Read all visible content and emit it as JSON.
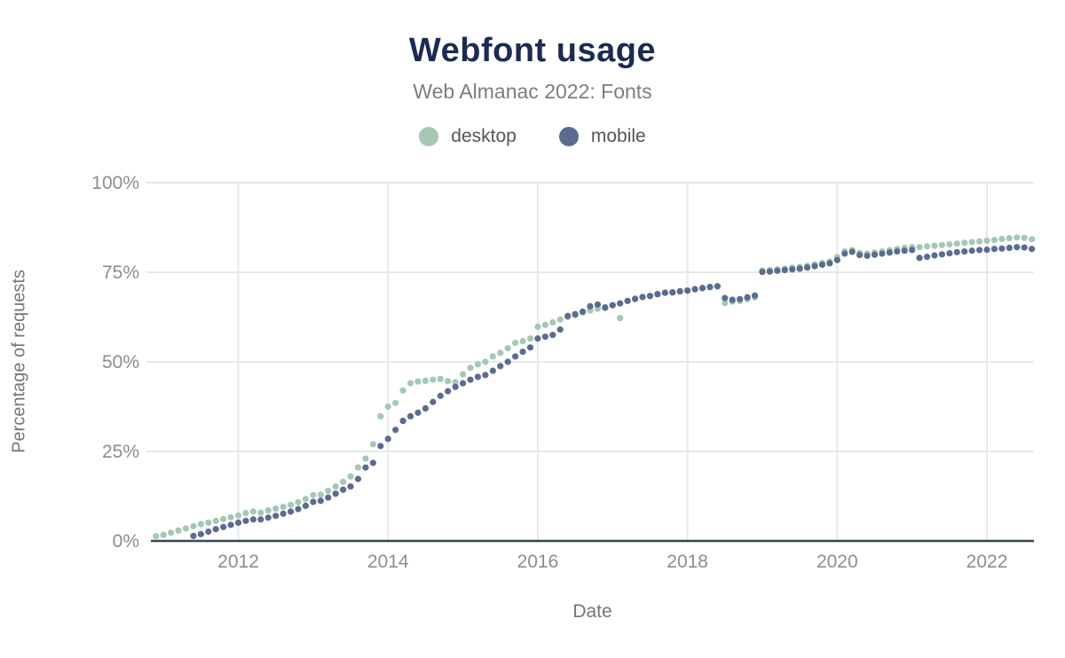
{
  "title": "Webfont usage",
  "subtitle": "Web Almanac 2022: Fonts",
  "legend": {
    "items": [
      {
        "label": "desktop",
        "color": "#a5c8b4"
      },
      {
        "label": "mobile",
        "color": "#5b6c90"
      }
    ]
  },
  "colors": {
    "title": "#1b2b52",
    "subtitle": "#7d7d7d",
    "grid": "#e8e8e8",
    "axis_line": "#37474f",
    "tick_label": "#8d8d8d",
    "axis_title": "#757575",
    "desktop": "#a5c8b4",
    "mobile": "#5b6c90",
    "background": "#ffffff"
  },
  "chart_data": {
    "type": "scatter",
    "title": "Webfont usage",
    "subtitle": "Web Almanac 2022: Fonts",
    "xlabel": "Date",
    "ylabel": "Percentage of requests",
    "legend_position": "top-center",
    "grid": true,
    "xlim": [
      2010.832,
      2022.628
    ],
    "ylim": [
      0,
      100
    ],
    "x_ticks": [
      {
        "v": 2012,
        "label": "2012"
      },
      {
        "v": 2014,
        "label": "2014"
      },
      {
        "v": 2016,
        "label": "2016"
      },
      {
        "v": 2018,
        "label": "2018"
      },
      {
        "v": 2020,
        "label": "2020"
      },
      {
        "v": 2022,
        "label": "2022"
      }
    ],
    "y_ticks": [
      {
        "v": 0,
        "label": "0%"
      },
      {
        "v": 25,
        "label": "25%"
      },
      {
        "v": 50,
        "label": "50%"
      },
      {
        "v": 75,
        "label": "75%"
      },
      {
        "v": 100,
        "label": "100%"
      }
    ],
    "point_radius": 3.6,
    "series": [
      {
        "name": "desktop",
        "color": "#a5c8b4",
        "x_start": 2010.9,
        "x_step": 0.1,
        "values": [
          1.3,
          1.7,
          2.3,
          2.9,
          3.5,
          4.1,
          4.7,
          5.1,
          5.6,
          6.1,
          6.6,
          7.1,
          7.8,
          8.2,
          7.9,
          8.5,
          9.0,
          9.5,
          10.1,
          10.8,
          11.7,
          12.8,
          12.9,
          14.0,
          15.2,
          16.5,
          18.0,
          20.5,
          23.0,
          27.0,
          34.8,
          37.5,
          38.5,
          42.0,
          44.0,
          44.5,
          44.7,
          45.0,
          45.2,
          44.6,
          44.3,
          46.5,
          48.3,
          49.3,
          50.0,
          51.5,
          52.5,
          53.8,
          55.3,
          55.8,
          56.5,
          59.8,
          60.3,
          61.0,
          61.8,
          62.5,
          63.0,
          63.8,
          64.3,
          64.8,
          65.0,
          65.8,
          62.2,
          67.0,
          67.5,
          68.0,
          68.3,
          68.8,
          69.2,
          69.3,
          69.6,
          69.8,
          70.2,
          70.5,
          70.8,
          71.0,
          66.4,
          66.8,
          67.0,
          67.5,
          68.0,
          75.5,
          75.6,
          75.8,
          76.0,
          76.3,
          76.5,
          76.8,
          77.2,
          77.6,
          78.0,
          79.2,
          80.8,
          81.2,
          80.4,
          80.2,
          80.5,
          80.8,
          81.2,
          81.5,
          81.8,
          82.0,
          82.0,
          82.2,
          82.4,
          82.6,
          82.8,
          83.0,
          83.2,
          83.4,
          83.6,
          83.8,
          84.0,
          84.3,
          84.5,
          84.7,
          84.6,
          84.2
        ]
      },
      {
        "name": "mobile",
        "color": "#5b6c90",
        "x_start": 2011.4,
        "x_step": 0.1,
        "values": [
          1.4,
          1.9,
          2.6,
          3.3,
          3.9,
          4.5,
          5.1,
          5.6,
          6.0,
          6.0,
          6.5,
          7.0,
          7.6,
          8.2,
          8.9,
          9.8,
          10.9,
          11.2,
          12.1,
          13.2,
          14.3,
          15.2,
          17.3,
          20.5,
          21.8,
          26.5,
          28.5,
          31.0,
          33.5,
          34.8,
          35.8,
          37.0,
          38.8,
          40.5,
          41.8,
          43.0,
          44.0,
          45.0,
          45.8,
          46.3,
          47.5,
          48.8,
          50.0,
          51.5,
          52.8,
          54.0,
          56.5,
          57.0,
          57.5,
          59.0,
          62.8,
          63.3,
          64.0,
          65.5,
          66.0,
          65.2,
          65.8,
          66.3,
          67.0,
          67.6,
          68.1,
          68.4,
          68.9,
          69.3,
          69.4,
          69.7,
          69.9,
          70.3,
          70.6,
          70.9,
          71.1,
          67.8,
          67.3,
          67.5,
          68.0,
          68.5,
          75.1,
          75.2,
          75.4,
          75.6,
          75.8,
          76.0,
          76.3,
          76.7,
          77.1,
          77.5,
          78.4,
          80.2,
          80.7,
          79.8,
          79.6,
          79.9,
          80.2,
          80.5,
          80.8,
          81.0,
          81.2,
          79.0,
          79.3,
          79.7,
          80.0,
          80.3,
          80.6,
          80.8,
          81.0,
          81.2,
          81.3,
          81.5,
          81.6,
          81.8,
          82.0,
          81.9,
          81.5
        ]
      }
    ]
  }
}
